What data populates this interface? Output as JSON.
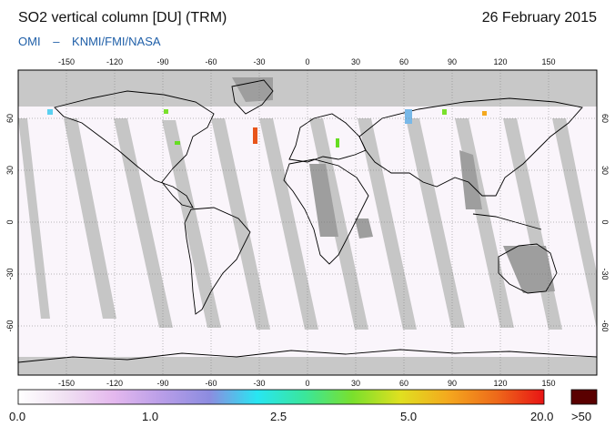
{
  "header": {
    "title": "SO2 vertical column [DU] (TRM)",
    "date": "26 February 2015",
    "source_parts": [
      "OMI",
      "–",
      "KNMI/FMI/NASA"
    ]
  },
  "map": {
    "projection": "equirectangular",
    "lon_ticks": [
      "-150",
      "-120",
      "-90",
      "-60",
      "-30",
      "0",
      "30",
      "60",
      "90",
      "120",
      "150"
    ],
    "lat_ticks": [
      "60",
      "30",
      "0",
      "-30",
      "-60"
    ],
    "colors": {
      "no_data": "#c8c8c8",
      "no_data_dark": "#9e9e9e",
      "land_outline": "#000000",
      "grid": "#777777",
      "ocean_clean": "#ffffff"
    }
  },
  "colorbar": {
    "labels": [
      "0.0",
      "1.0",
      "2.5",
      "5.0",
      "20.0",
      ">50"
    ],
    "gradient_stops": [
      "#ffffff",
      "#f0e0f2",
      "#e4b8ee",
      "#b99ee8",
      "#8c8ce0",
      "#28e6f2",
      "#3ae69a",
      "#7ae02c",
      "#e0e020",
      "#f4a81e",
      "#ee6a1a",
      "#e81414"
    ],
    "overflow_color": "#5a0000"
  }
}
